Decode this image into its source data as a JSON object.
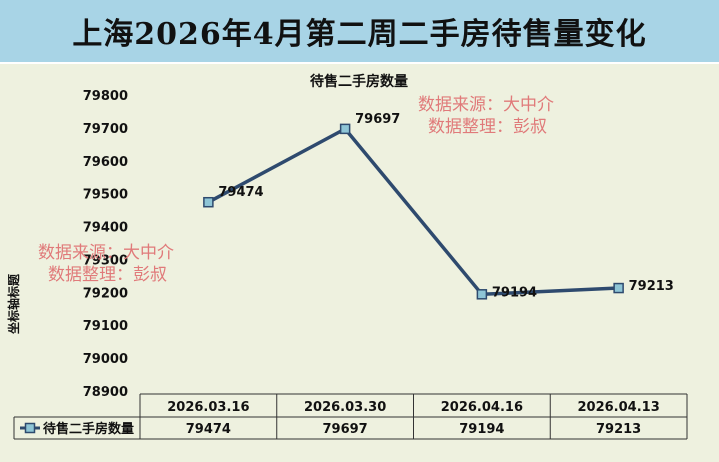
{
  "header": {
    "title": "上海2026年4月第二周二手房待售量变化"
  },
  "chart_data": {
    "type": "line",
    "title": "待售二手房数量",
    "ylabel": "坐标轴标题",
    "categories": [
      "2026.03.16",
      "2026.03.30",
      "2026.04.16",
      "2026.04.13"
    ],
    "series": [
      {
        "name": "待售二手房数量",
        "values": [
          79474,
          79697,
          79194,
          79213
        ],
        "color": "#2e4a6e"
      }
    ],
    "ylim": [
      78900,
      79800
    ],
    "yticks": [
      79800,
      79700,
      79600,
      79500,
      79400,
      79300,
      79200,
      79100,
      79000,
      78900
    ],
    "data_table": true,
    "grid": false
  },
  "watermarks": [
    {
      "line1": "数据来源：大中介",
      "line2": "数据整理：彭叔"
    },
    {
      "line1": "数据来源：大中介",
      "line2": "数据整理：彭叔"
    }
  ],
  "colors": {
    "line": "#2e4a6e",
    "marker_fill": "#8ec5d6",
    "watermark": "#e07a7a"
  }
}
